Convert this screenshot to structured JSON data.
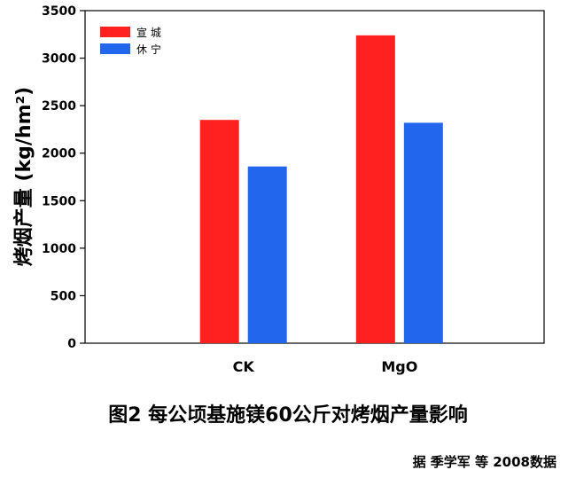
{
  "chart_data": {
    "type": "bar",
    "categories": [
      "CK",
      "MgO"
    ],
    "series": [
      {
        "name": "宣 城",
        "values": [
          2350,
          3240
        ],
        "color": "#ff2020"
      },
      {
        "name": "休 宁",
        "values": [
          1860,
          2320
        ],
        "color": "#2266ee"
      }
    ],
    "ylabel": "烤烟产量 (kg/hm²)",
    "ylim": [
      0,
      3500
    ],
    "yticks": [
      0,
      500,
      1000,
      1500,
      2000,
      2500,
      3000,
      3500
    ],
    "legend_position": "top-left",
    "grid": false
  },
  "caption": "图2 每公顷基施镁60公斤对烤烟产量影响",
  "source": "据 季学军 等 2008数据"
}
